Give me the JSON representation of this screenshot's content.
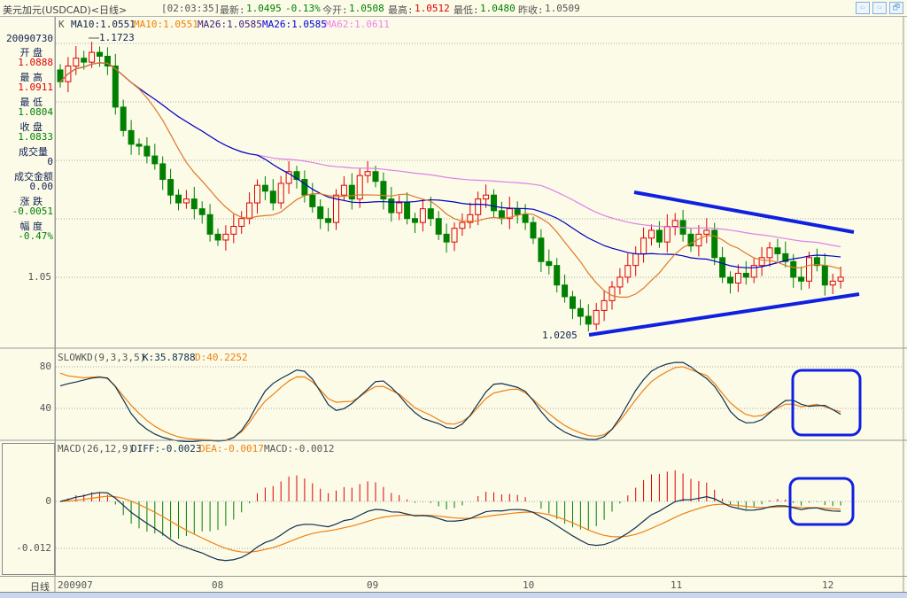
{
  "title": {
    "name": "美元加元(USDCAD)<日线>",
    "time": "[02:03:35]",
    "latest_label": "最新:",
    "latest": "1.0495",
    "change": "-0.13%",
    "open_label": "今开:",
    "open": "1.0508",
    "high_label": "最高:",
    "high": "1.0512",
    "low_label": "最低:",
    "low": "1.0480",
    "prev_label": "昨收:",
    "prev": "1.0509"
  },
  "nav": {
    "back_icon": "⇦",
    "forward_icon": "⇨",
    "restore_icon": "🗗"
  },
  "info": {
    "date": "20090730",
    "open_label": "开 盘",
    "open": "1.0888",
    "high_label": "最 高",
    "high": "1.0911",
    "low_label": "最 低",
    "low": "1.0804",
    "close_label": "收 盘",
    "close": "1.0833",
    "volume_label": "成交量",
    "volume": "0",
    "amount_label": "成交金额",
    "amount": "0.00",
    "change_label": "涨 跌",
    "change": "-0.0051",
    "pct_label": "幅 度",
    "pct": "-0.47%"
  },
  "ma_legend": {
    "k": "K",
    "ma10a": "MA10:1.0551",
    "ma10b": "MA10:1.0551",
    "ma26a": "MA26:1.0585",
    "ma26b": "MA26:1.0585",
    "ma62": "MA62:1.0611"
  },
  "kd_legend": {
    "name": "SLOWKD(9,3,3,5)",
    "k": "K:35.8788",
    "d": "D:40.2252"
  },
  "macd_legend": {
    "name": "MACD(26,12,9)",
    "diff": "DIFF:-0.0023",
    "dea": "DEA:-0.0017",
    "macd": "MACD:-0.0012"
  },
  "colors": {
    "up": "#e00000",
    "down": "#008000",
    "ma10": "#e07828",
    "ma26": "#0000c0",
    "ma62": "#e080e8",
    "k_line": "#103050",
    "d_line": "#f08010",
    "annotation": "#1020e0"
  },
  "chart_data": [
    {
      "type": "candlestick",
      "title": "USDCAD 日线",
      "ytick_labels": [
        "1.05"
      ],
      "annotations": {
        "max": "1.1723",
        "min": "1.0205"
      },
      "x_ticks": [
        "200907",
        "08",
        "09",
        "10",
        "11",
        "12"
      ],
      "closes": [
        1.15,
        1.158,
        1.162,
        1.16,
        1.165,
        1.163,
        1.158,
        1.137,
        1.125,
        1.118,
        1.117,
        1.112,
        1.108,
        1.1,
        1.092,
        1.088,
        1.09,
        1.085,
        1.082,
        1.072,
        1.069,
        1.072,
        1.076,
        1.08,
        1.088,
        1.097,
        1.094,
        1.088,
        1.098,
        1.104,
        1.1,
        1.092,
        1.086,
        1.08,
        1.078,
        1.092,
        1.097,
        1.09,
        1.102,
        1.104,
        1.099,
        1.09,
        1.083,
        1.088,
        1.08,
        1.078,
        1.085,
        1.08,
        1.072,
        1.068,
        1.075,
        1.078,
        1.082,
        1.09,
        1.092,
        1.084,
        1.08,
        1.085,
        1.082,
        1.078,
        1.07,
        1.058,
        1.056,
        1.046,
        1.04,
        1.034,
        1.03,
        1.026,
        1.033,
        1.038,
        1.045,
        1.05,
        1.056,
        1.062,
        1.07,
        1.074,
        1.068,
        1.076,
        1.079,
        1.072,
        1.066,
        1.072,
        1.074,
        1.06,
        1.05,
        1.047,
        1.052,
        1.05,
        1.056,
        1.06,
        1.065,
        1.062,
        1.058,
        1.05,
        1.048,
        1.06,
        1.056,
        1.046,
        1.048,
        1.05
      ],
      "moving_averages": [
        10,
        26,
        62
      ]
    },
    {
      "type": "line",
      "name": "SLOWKD",
      "ytick_labels": [
        "80",
        "40"
      ]
    },
    {
      "type": "bar+line",
      "name": "MACD",
      "ytick_labels": [
        "0",
        "-0.012"
      ]
    }
  ],
  "xaxis_label": "日线"
}
